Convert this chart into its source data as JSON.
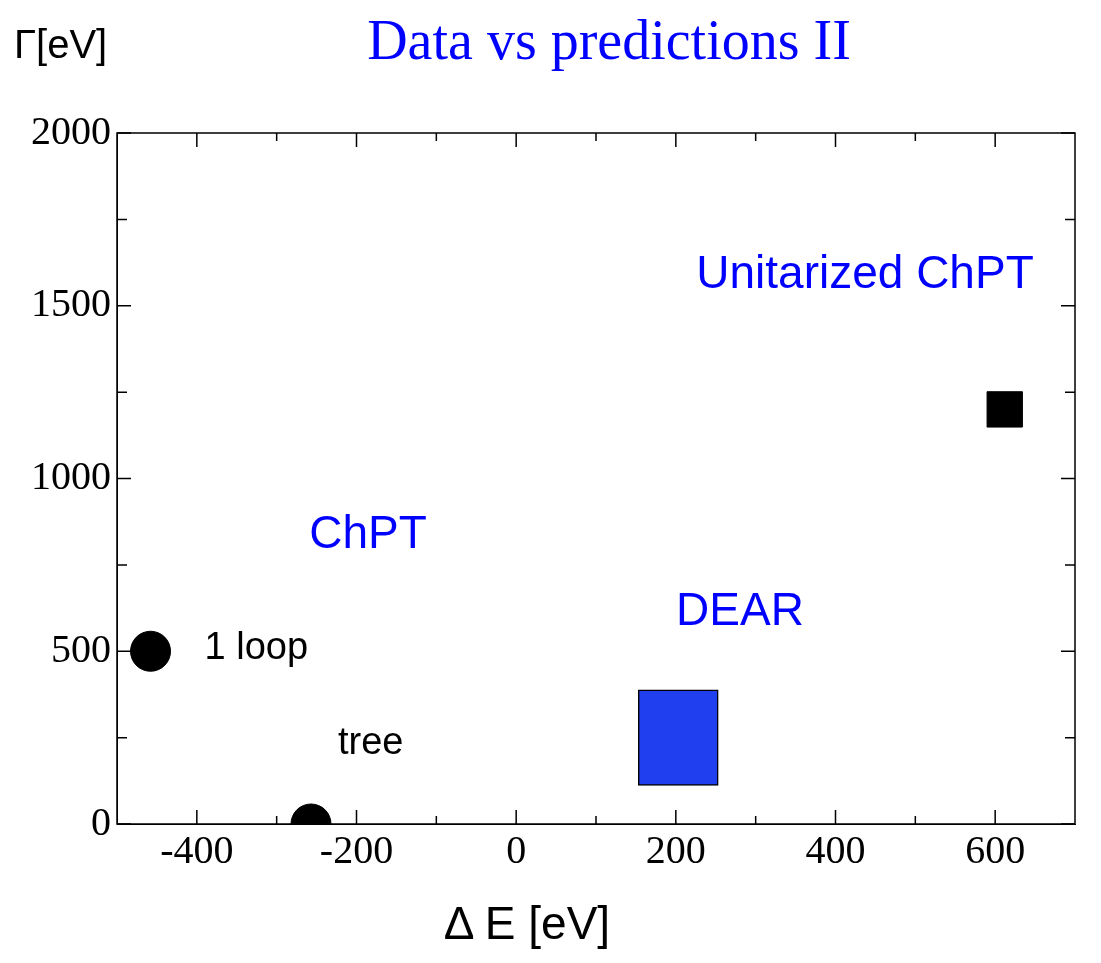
{
  "chart_data": {
    "type": "scatter",
    "title": "Data vs predictions II",
    "xlabel": "Δ E [eV]",
    "ylabel": "Γ[eV]",
    "xlim": [
      -500,
      700
    ],
    "ylim": [
      0,
      2000
    ],
    "xticks": [
      {
        "value": -400,
        "label": "-400"
      },
      {
        "value": -300,
        "label": null
      },
      {
        "value": -200,
        "label": "-200"
      },
      {
        "value": -100,
        "label": null
      },
      0,
      {
        "value": 100,
        "label": null
      },
      200,
      {
        "value": 300,
        "label": null
      },
      400,
      {
        "value": 500,
        "label": null
      },
      600
    ],
    "yticks": [
      0,
      {
        "value": 250,
        "label": null
      },
      500,
      {
        "value": 750,
        "label": null
      },
      1000,
      {
        "value": 1250,
        "label": null
      },
      1500,
      {
        "value": 1750,
        "label": null
      },
      2000
    ],
    "grid": false,
    "legend": false,
    "series": [
      {
        "name": "1 loop",
        "color": "#000000",
        "marker": "circle",
        "x": [
          -458
        ],
        "values": [
          500
        ]
      },
      {
        "name": "tree",
        "color": "#000000",
        "marker": "circle",
        "x": [
          -257
        ],
        "values": [
          0
        ]
      },
      {
        "color": "#000000",
        "marker": "square",
        "x": [
          612
        ],
        "values": [
          1200
        ]
      },
      {
        "type": "bar",
        "color": "#2040f0",
        "x": [
          203
        ],
        "base": [
          112
        ],
        "values": [
          276
        ]
      }
    ],
    "annotations": [
      "ChPT",
      "DEAR",
      "Unitarized ChPT"
    ]
  }
}
